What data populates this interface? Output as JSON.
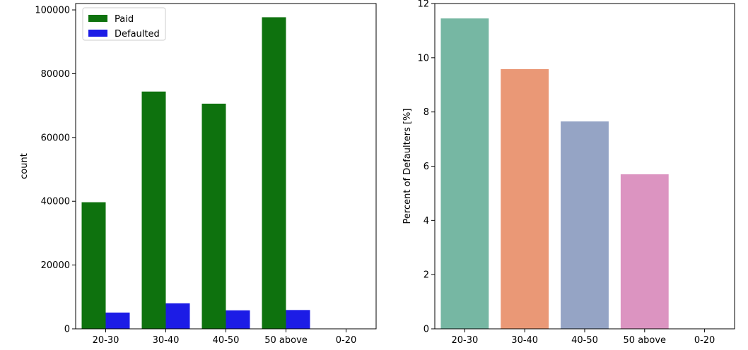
{
  "chart_data": [
    {
      "type": "bar",
      "title": "",
      "xlabel": "",
      "ylabel": "count",
      "categories": [
        "20-30",
        "30-40",
        "40-50",
        "50 above",
        "0-20"
      ],
      "series": [
        {
          "name": "Paid",
          "values": [
            39700,
            74400,
            70600,
            97700,
            0
          ],
          "color": "#0e720e"
        },
        {
          "name": "Defaulted",
          "values": [
            5100,
            8000,
            5800,
            5900,
            0
          ],
          "color": "#1c1ce6"
        }
      ],
      "ylim": [
        0,
        102000
      ],
      "yticks": [
        0,
        20000,
        40000,
        60000,
        80000,
        100000
      ],
      "ytick_labels": [
        "0",
        "20000",
        "40000",
        "60000",
        "80000",
        "100000"
      ],
      "legend": {
        "position": "top-left",
        "entries": [
          "Paid",
          "Defaulted"
        ]
      }
    },
    {
      "type": "bar",
      "title": "",
      "xlabel": "",
      "ylabel": "Percent of Defaulters [%]",
      "categories": [
        "20-30",
        "30-40",
        "40-50",
        "50 above",
        "0-20"
      ],
      "values": [
        11.45,
        9.58,
        7.65,
        5.7,
        0
      ],
      "colors": [
        "#76b7a3",
        "#ea9876",
        "#95a4c5",
        "#dc94c1",
        "#a6d854"
      ],
      "ylim": [
        0,
        12
      ],
      "yticks": [
        0,
        2,
        4,
        6,
        8,
        10,
        12
      ],
      "ytick_labels": [
        "0",
        "2",
        "4",
        "6",
        "8",
        "10",
        "12"
      ]
    }
  ]
}
